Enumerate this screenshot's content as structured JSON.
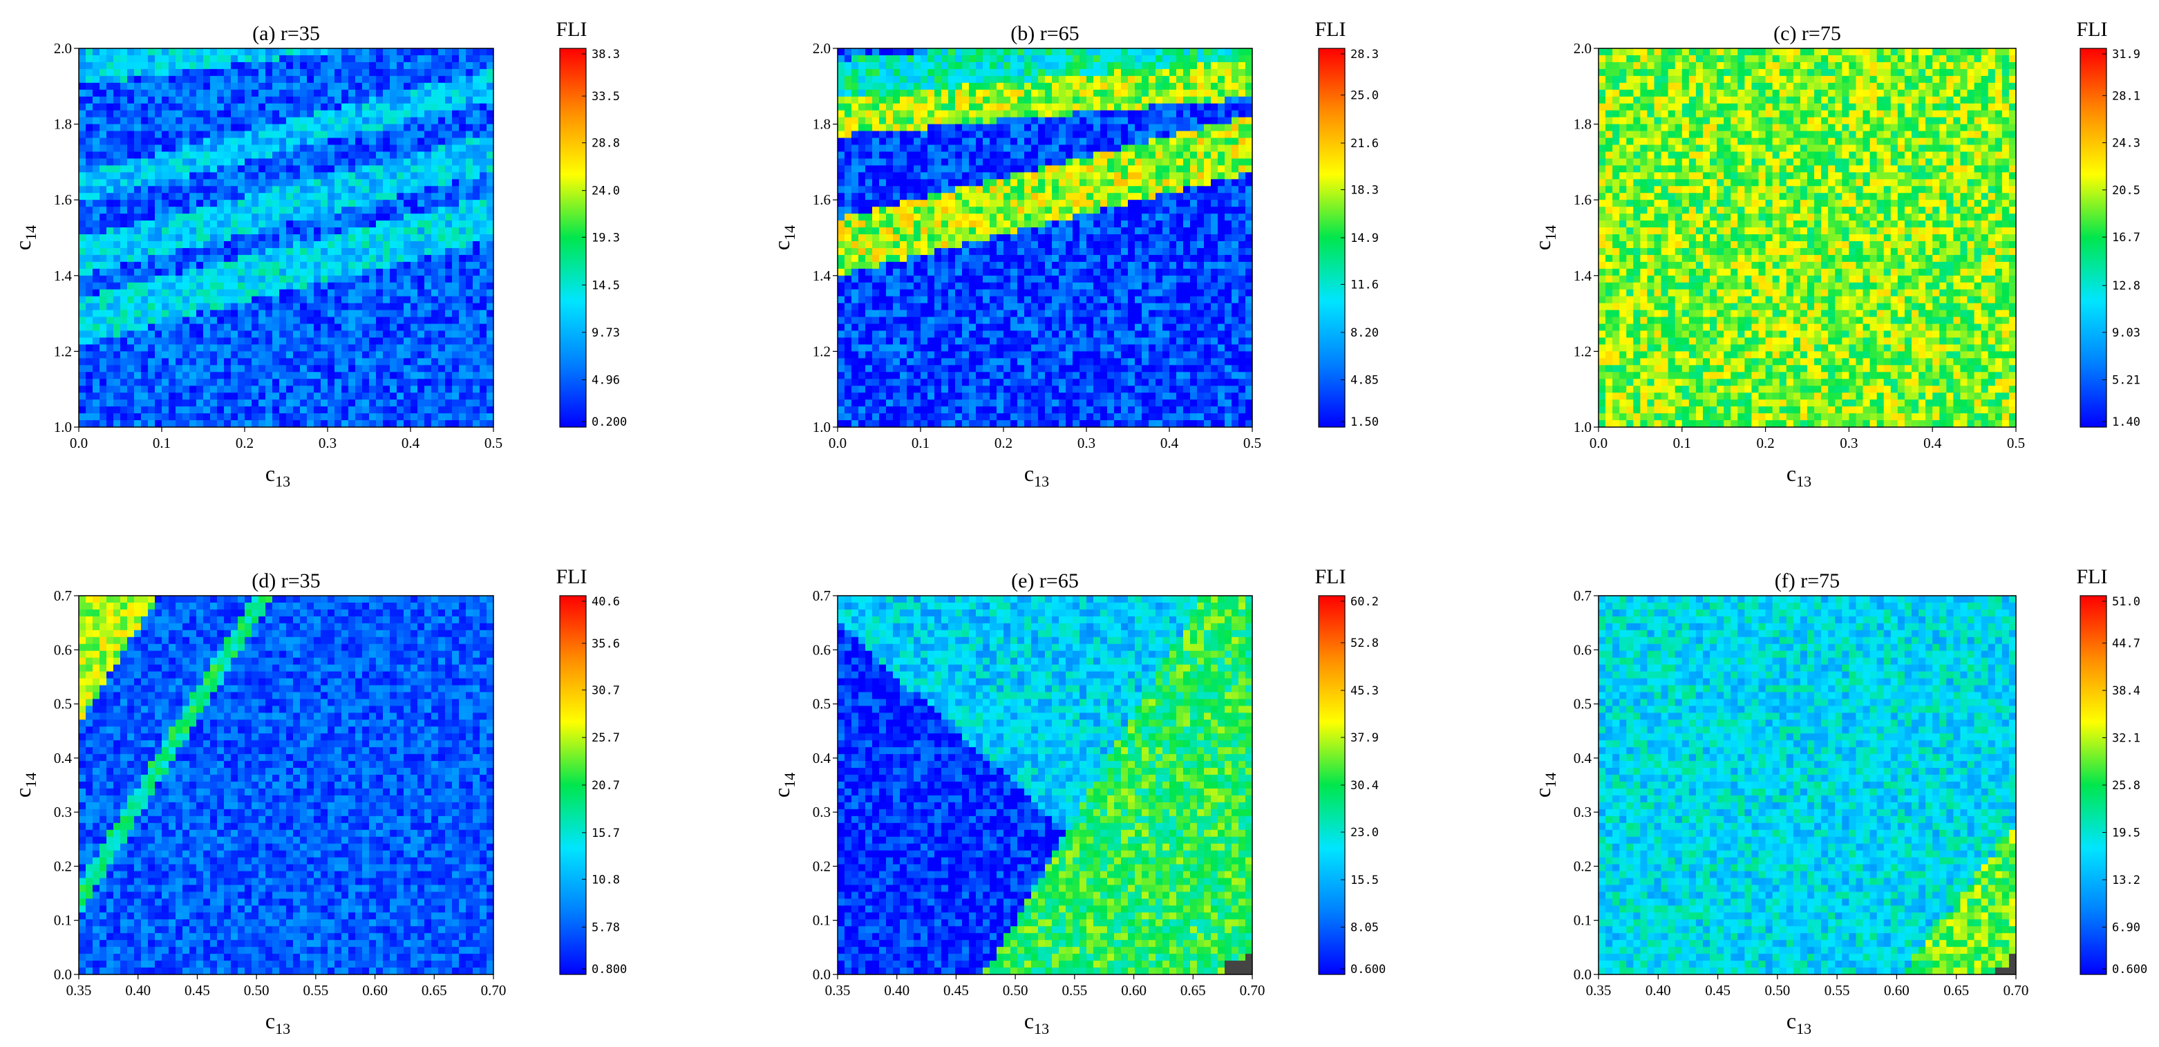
{
  "figure": {
    "colormap": [
      "#0000ff",
      "#0080ff",
      "#00e5ff",
      "#00e64d",
      "#ffff00",
      "#ff8c00",
      "#ff0000"
    ],
    "mask_color": "#444444"
  },
  "chart_data": [
    {
      "type": "heatmap",
      "title": "(a) r=35",
      "xlabel": "c",
      "xlabel_sub": "13",
      "ylabel": "c",
      "ylabel_sub": "14",
      "xlim": [
        0.0,
        0.5
      ],
      "ylim": [
        1.0,
        2.0
      ],
      "xticks": [
        "0.0",
        "0.1",
        "0.2",
        "0.3",
        "0.4",
        "0.5"
      ],
      "yticks": [
        "1.0",
        "1.2",
        "1.4",
        "1.6",
        "1.8",
        "2.0"
      ],
      "colorbar": {
        "title": "FLI",
        "ticks": [
          "38.3",
          "33.5",
          "28.8",
          "24.0",
          "19.3",
          "14.5",
          "9.73",
          "4.96",
          "0.200"
        ],
        "range": [
          0.2,
          38.3
        ]
      },
      "pattern": {
        "base": 0.12,
        "bands": [
          {
            "slope": 1.9,
            "offset": -0.92,
            "width": 0.55,
            "level": 0.65,
            "side": "below"
          },
          {
            "slope": 0.55,
            "offset": 1.28,
            "width": 0.06,
            "level": 0.32
          },
          {
            "slope": 0.55,
            "offset": 1.45,
            "width": 0.05,
            "level": 0.3
          },
          {
            "slope": 0.55,
            "offset": 1.63,
            "width": 0.04,
            "level": 0.28
          },
          {
            "slope": 0.3,
            "offset": 1.95,
            "width": 0.05,
            "level": 0.3
          }
        ],
        "noise": 0.12
      }
    },
    {
      "type": "heatmap",
      "title": "(b) r=65",
      "xlabel": "c",
      "xlabel_sub": "13",
      "ylabel": "c",
      "ylabel_sub": "14",
      "xlim": [
        0.0,
        0.5
      ],
      "ylim": [
        1.0,
        2.0
      ],
      "xticks": [
        "0.0",
        "0.1",
        "0.2",
        "0.3",
        "0.4",
        "0.5"
      ],
      "yticks": [
        "1.0",
        "1.2",
        "1.4",
        "1.6",
        "1.8",
        "2.0"
      ],
      "colorbar": {
        "title": "FLI",
        "ticks": [
          "28.3",
          "25.0",
          "21.6",
          "18.3",
          "14.9",
          "11.6",
          "8.20",
          "4.85",
          "1.50"
        ],
        "range": [
          1.5,
          28.3
        ]
      },
      "pattern": {
        "base": 0.08,
        "bands": [
          {
            "slope": 0.55,
            "offset": 1.4,
            "width": 0.16,
            "level": 0.62,
            "side": "above_to",
            "to": 1.75
          },
          {
            "slope": 0.2,
            "offset": 1.82,
            "width": 0.05,
            "level": 0.6
          },
          {
            "slope": 0.2,
            "offset": 1.92,
            "width": 0.05,
            "level": 0.4
          }
        ],
        "noise": 0.14
      }
    },
    {
      "type": "heatmap",
      "title": "(c) r=75",
      "xlabel": "c",
      "xlabel_sub": "13",
      "ylabel": "c",
      "ylabel_sub": "14",
      "xlim": [
        0.0,
        0.5
      ],
      "ylim": [
        1.0,
        2.0
      ],
      "xticks": [
        "0.0",
        "0.1",
        "0.2",
        "0.3",
        "0.4",
        "0.5"
      ],
      "yticks": [
        "1.0",
        "1.2",
        "1.4",
        "1.6",
        "1.8",
        "2.0"
      ],
      "colorbar": {
        "title": "FLI",
        "ticks": [
          "31.9",
          "28.1",
          "24.3",
          "20.5",
          "16.7",
          "12.8",
          "9.03",
          "5.21",
          "1.40"
        ],
        "range": [
          1.4,
          31.9
        ]
      },
      "pattern": {
        "base": 0.58,
        "bands": [
          {
            "slope": 1.2,
            "offset": 0.8,
            "width": 0.02,
            "level": 0.15
          },
          {
            "slope": 1.2,
            "offset": 0.62,
            "width": 0.03,
            "level": 0.35
          },
          {
            "slope": 1.2,
            "offset": 0.45,
            "width": 0.03,
            "level": 0.3
          }
        ],
        "noise": 0.14
      }
    },
    {
      "type": "heatmap",
      "title": "(d) r=35",
      "xlabel": "c",
      "xlabel_sub": "13",
      "ylabel": "c",
      "ylabel_sub": "14",
      "xlim": [
        0.35,
        0.7
      ],
      "ylim": [
        0.0,
        0.7
      ],
      "xticks": [
        "0.35",
        "0.40",
        "0.45",
        "0.50",
        "0.55",
        "0.60",
        "0.65",
        "0.70"
      ],
      "yticks": [
        "0.0",
        "0.1",
        "0.2",
        "0.3",
        "0.4",
        "0.5",
        "0.6",
        "0.7"
      ],
      "colorbar": {
        "title": "FLI",
        "ticks": [
          "40.6",
          "35.6",
          "30.7",
          "25.7",
          "20.7",
          "15.7",
          "10.8",
          "5.78",
          "0.800"
        ],
        "range": [
          0.8,
          40.6
        ]
      },
      "pattern": {
        "base": 0.12,
        "bands": [
          {
            "slope": 3.6,
            "offset": -1.12,
            "width": 0.03,
            "level": 0.45
          },
          {
            "slope": 3.6,
            "offset": -0.8,
            "width": 0.12,
            "level": 0.62,
            "side": "above"
          }
        ],
        "noise": 0.1
      }
    },
    {
      "type": "heatmap",
      "title": "(e) r=65",
      "xlabel": "c",
      "xlabel_sub": "13",
      "ylabel": "c",
      "ylabel_sub": "14",
      "xlim": [
        0.35,
        0.7
      ],
      "ylim": [
        0.0,
        0.7
      ],
      "xticks": [
        "0.35",
        "0.40",
        "0.45",
        "0.50",
        "0.55",
        "0.60",
        "0.65",
        "0.70"
      ],
      "yticks": [
        "0.0",
        "0.1",
        "0.2",
        "0.3",
        "0.4",
        "0.5",
        "0.6",
        "0.7"
      ],
      "colorbar": {
        "title": "FLI",
        "ticks": [
          "60.2",
          "52.8",
          "45.3",
          "37.9",
          "30.4",
          "23.0",
          "15.5",
          "8.05",
          "0.600"
        ],
        "range": [
          0.6,
          60.2
        ]
      },
      "pattern": {
        "base": 0.05,
        "bands": [
          {
            "slope": 3.8,
            "offset": -1.8,
            "width": 0.05,
            "level": 0.5,
            "side": "below"
          },
          {
            "slope": -2.0,
            "offset": 1.35,
            "width": 0.05,
            "level": 0.3,
            "side": "above"
          }
        ],
        "noise": 0.12,
        "mask": {
          "x0": 0.675,
          "y1": 0.24
        }
      }
    },
    {
      "type": "heatmap",
      "title": "(f) r=75",
      "xlabel": "c",
      "xlabel_sub": "13",
      "ylabel": "c",
      "ylabel_sub": "14",
      "xlim": [
        0.35,
        0.7
      ],
      "ylim": [
        0.0,
        0.7
      ],
      "xticks": [
        "0.35",
        "0.40",
        "0.45",
        "0.50",
        "0.55",
        "0.60",
        "0.65",
        "0.70"
      ],
      "yticks": [
        "0.0",
        "0.1",
        "0.2",
        "0.3",
        "0.4",
        "0.5",
        "0.6",
        "0.7"
      ],
      "colorbar": {
        "title": "FLI",
        "ticks": [
          "51.0",
          "44.7",
          "38.4",
          "32.1",
          "25.8",
          "19.5",
          "13.2",
          "6.90",
          "0.600"
        ],
        "range": [
          0.6,
          51.0
        ]
      },
      "pattern": {
        "base": 0.33,
        "bands": [
          {
            "slope": 2.9,
            "offset": -1.0,
            "width": 0.025,
            "level": 0.1
          },
          {
            "slope": 2.9,
            "offset": -1.25,
            "width": 0.02,
            "level": 0.12
          },
          {
            "slope": 2.9,
            "offset": -1.45,
            "width": 0.02,
            "level": 0.15
          },
          {
            "slope": 2.9,
            "offset": -1.6,
            "width": 0.04,
            "level": 0.08
          },
          {
            "slope": 2.9,
            "offset": -1.75,
            "width": 0.15,
            "level": 0.55,
            "side": "below"
          }
        ],
        "noise": 0.12,
        "mask": {
          "x0": 0.68,
          "y1": 0.27
        }
      }
    }
  ]
}
